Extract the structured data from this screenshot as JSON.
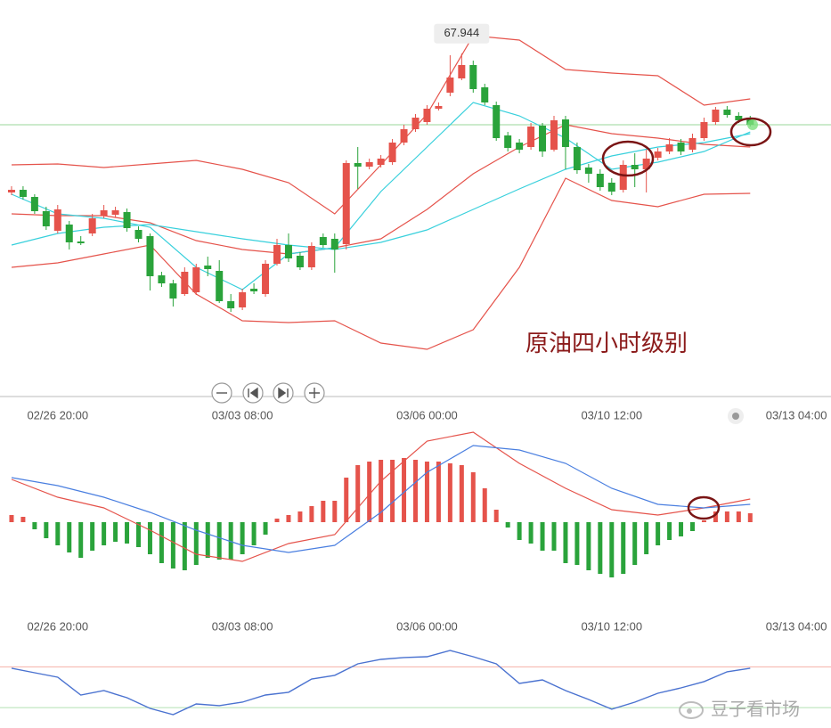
{
  "chart_data": [
    {
      "type": "candlestick",
      "annotation": "原油四小时级别",
      "marker": {
        "value": 67.944,
        "x": 39
      },
      "xlim": [
        -1,
        71
      ],
      "ylim": [
        59.9,
        68.8
      ],
      "xticks": [
        {
          "value": 4,
          "label": "02/26 20:00"
        },
        {
          "value": 20,
          "label": "03/03 08:00"
        },
        {
          "value": 36,
          "label": "03/06 00:00"
        },
        {
          "value": 52,
          "label": "03/10 12:00"
        },
        {
          "value": 68,
          "label": "03/13 04:00"
        }
      ],
      "up_color": "#e5534b",
      "down_color": "#2aa33b",
      "open": [
        64.48,
        64.54,
        64.38,
        64.06,
        63.62,
        63.76,
        63.38,
        63.56,
        63.96,
        63.98,
        64.04,
        63.64,
        63.5,
        62.62,
        62.44,
        62.2,
        62.24,
        62.84,
        62.72,
        62.04,
        61.9,
        62.32,
        62.2,
        62.88,
        63.3,
        63.06,
        62.8,
        63.48,
        63.44,
        63.32,
        65.14,
        65.06,
        65.1,
        65.16,
        65.6,
        65.9,
        66.06,
        66.36,
        66.72,
        67.04,
        67.34,
        66.84,
        66.44,
        65.76,
        65.6,
        65.5,
        65.98,
        65.44,
        66.12,
        65.5,
        65.04,
        64.9,
        64.7,
        64.54,
        65.1,
        65.0,
        65.26,
        65.4,
        65.6,
        65.44,
        65.7,
        66.06,
        66.34,
        66.2,
        66.12
      ],
      "close": [
        64.54,
        64.38,
        64.06,
        63.72,
        64.1,
        63.36,
        63.34,
        63.9,
        64.08,
        64.08,
        63.68,
        63.44,
        62.6,
        62.44,
        62.1,
        62.7,
        62.8,
        62.76,
        62.04,
        61.88,
        62.24,
        62.26,
        62.88,
        63.3,
        63.0,
        62.8,
        63.28,
        63.3,
        63.2,
        65.14,
        65.06,
        65.16,
        65.24,
        65.6,
        65.9,
        66.16,
        66.36,
        66.42,
        67.06,
        67.34,
        66.8,
        66.5,
        65.7,
        65.48,
        65.44,
        65.96,
        65.4,
        66.1,
        65.5,
        64.98,
        64.9,
        64.6,
        64.5,
        65.1,
        65.0,
        65.24,
        65.4,
        65.56,
        65.4,
        65.7,
        66.06,
        66.34,
        66.22,
        66.1,
        66.0
      ],
      "high": [
        64.62,
        64.62,
        64.44,
        64.16,
        64.2,
        63.84,
        63.5,
        64.0,
        64.2,
        64.16,
        64.12,
        63.72,
        63.56,
        62.7,
        62.52,
        62.8,
        62.88,
        63.04,
        62.96,
        62.2,
        62.32,
        62.44,
        62.96,
        63.44,
        63.56,
        63.14,
        63.36,
        63.56,
        63.56,
        65.2,
        65.5,
        65.24,
        65.32,
        65.68,
        66.0,
        66.24,
        66.44,
        66.5,
        67.56,
        67.6,
        67.44,
        66.92,
        66.52,
        65.84,
        65.68,
        66.04,
        66.04,
        66.2,
        66.2,
        65.6,
        65.12,
        65.0,
        64.8,
        65.2,
        65.36,
        65.44,
        65.48,
        65.7,
        65.68,
        65.8,
        66.16,
        66.4,
        66.42,
        66.28,
        66.2
      ],
      "low": [
        64.42,
        64.32,
        64.0,
        63.64,
        63.56,
        63.2,
        63.3,
        63.5,
        63.9,
        63.92,
        63.6,
        63.36,
        62.28,
        62.36,
        61.92,
        62.16,
        62.18,
        62.6,
        62.0,
        61.8,
        61.84,
        62.2,
        62.14,
        62.84,
        62.92,
        62.74,
        62.74,
        63.24,
        62.68,
        63.2,
        64.56,
        65.0,
        65.04,
        65.1,
        65.54,
        65.84,
        66.0,
        66.32,
        66.64,
        67.0,
        66.72,
        66.44,
        65.64,
        65.4,
        65.36,
        65.44,
        65.28,
        65.4,
        65.0,
        64.9,
        64.7,
        64.52,
        64.42,
        64.48,
        64.6,
        64.48,
        65.2,
        65.34,
        65.32,
        65.38,
        65.64,
        66.0,
        66.16,
        66.04,
        65.96
      ],
      "price_line": {
        "value": 66.0,
        "color": "#9ad79a"
      },
      "overlays": [
        {
          "color": "#e5534b",
          "x": [
            0,
            4,
            8,
            12,
            16,
            20,
            24,
            28,
            32,
            36,
            40,
            44,
            48,
            52,
            56,
            60,
            64
          ],
          "values": [
            65.1,
            65.12,
            65.04,
            65.12,
            65.2,
            65.0,
            64.7,
            64.0,
            65.1,
            66.24,
            68.0,
            67.9,
            67.24,
            67.16,
            67.1,
            66.44,
            66.58
          ]
        },
        {
          "color": "#e5534b",
          "x": [
            0,
            4,
            8,
            12,
            16,
            20,
            24,
            28,
            32,
            36,
            40,
            44,
            48,
            52,
            56,
            60,
            64
          ],
          "values": [
            64.0,
            63.96,
            63.96,
            63.8,
            63.4,
            63.2,
            63.1,
            63.24,
            63.44,
            64.1,
            64.9,
            65.5,
            66.0,
            65.8,
            65.7,
            65.56,
            65.5
          ]
        },
        {
          "color": "#e5534b",
          "x": [
            0,
            4,
            8,
            12,
            16,
            20,
            24,
            28,
            32,
            36,
            40,
            44,
            48,
            52,
            56,
            60,
            64
          ],
          "values": [
            62.8,
            62.9,
            63.1,
            63.3,
            62.2,
            61.6,
            61.56,
            61.6,
            61.1,
            60.96,
            61.4,
            62.8,
            64.8,
            64.3,
            64.16,
            64.44,
            64.46
          ]
        },
        {
          "color": "#38d0dc",
          "x": [
            0,
            4,
            8,
            12,
            16,
            20,
            24,
            28,
            32,
            36,
            40,
            44,
            48,
            52,
            56,
            60,
            64
          ],
          "values": [
            64.44,
            64.0,
            63.9,
            63.7,
            62.8,
            62.3,
            63.1,
            63.24,
            64.5,
            65.5,
            66.5,
            66.2,
            65.7,
            65.0,
            65.16,
            65.4,
            65.84
          ]
        },
        {
          "color": "#38d0dc",
          "x": [
            0,
            4,
            8,
            12,
            16,
            20,
            24,
            28,
            32,
            36,
            40,
            44,
            48,
            52,
            56,
            60,
            64
          ],
          "values": [
            63.3,
            63.56,
            63.7,
            63.76,
            63.6,
            63.44,
            63.3,
            63.2,
            63.36,
            63.64,
            64.1,
            64.56,
            65.0,
            65.3,
            65.5,
            65.6,
            65.8
          ]
        }
      ]
    },
    {
      "type": "macd",
      "xlim": [
        -1,
        71
      ],
      "ylim": [
        -0.47,
        0.53
      ],
      "xticks": [
        {
          "value": 4,
          "label": "02/26 20:00"
        },
        {
          "value": 20,
          "label": "03/03 08:00"
        },
        {
          "value": 36,
          "label": "03/06 00:00"
        },
        {
          "value": 52,
          "label": "03/10 12:00"
        },
        {
          "value": 68,
          "label": "03/13 04:00"
        }
      ],
      "up_color": "#e5534b",
      "down_color": "#2aa33b",
      "values": [
        0.04,
        0.03,
        -0.04,
        -0.09,
        -0.13,
        -0.17,
        -0.2,
        -0.16,
        -0.13,
        -0.11,
        -0.12,
        -0.14,
        -0.18,
        -0.23,
        -0.26,
        -0.27,
        -0.24,
        -0.2,
        -0.21,
        -0.21,
        -0.18,
        -0.13,
        -0.07,
        0.02,
        0.04,
        0.06,
        0.09,
        0.12,
        0.12,
        0.25,
        0.32,
        0.34,
        0.35,
        0.35,
        0.36,
        0.35,
        0.34,
        0.34,
        0.33,
        0.32,
        0.28,
        0.19,
        0.07,
        -0.03,
        -0.1,
        -0.12,
        -0.16,
        -0.16,
        -0.23,
        -0.24,
        -0.27,
        -0.29,
        -0.31,
        -0.29,
        -0.24,
        -0.18,
        -0.13,
        -0.1,
        -0.08,
        -0.05,
        0.01,
        0.06,
        0.06,
        0.06,
        0.05
      ],
      "lines": [
        {
          "color": "#e5534b",
          "x": [
            0,
            4,
            8,
            12,
            16,
            20,
            24,
            28,
            32,
            36,
            40,
            44,
            48,
            52,
            56,
            60,
            64
          ],
          "values": [
            0.24,
            0.14,
            0.08,
            -0.045,
            -0.18,
            -0.22,
            -0.12,
            -0.07,
            0.23,
            0.455,
            0.505,
            0.33,
            0.19,
            0.07,
            0.04,
            0.08,
            0.13
          ]
        },
        {
          "color": "#4a7fe0",
          "x": [
            0,
            4,
            8,
            12,
            16,
            20,
            24,
            28,
            32,
            36,
            40,
            44,
            48,
            52,
            56,
            60,
            64
          ],
          "values": [
            0.25,
            0.205,
            0.14,
            0.055,
            -0.045,
            -0.13,
            -0.17,
            -0.13,
            0.055,
            0.28,
            0.43,
            0.405,
            0.33,
            0.19,
            0.1,
            0.08,
            0.1
          ]
        }
      ]
    },
    {
      "type": "line",
      "xlim": [
        -1,
        71
      ],
      "ylim": [
        10,
        100
      ],
      "color": "#4a72d0",
      "reference_lines": [
        {
          "value": 70,
          "color": "#f5b0a6"
        },
        {
          "value": 30,
          "color": "#b3e0b3"
        }
      ],
      "x": [
        0,
        2,
        4,
        6,
        8,
        10,
        12,
        14,
        16,
        18,
        20,
        22,
        24,
        26,
        28,
        30,
        32,
        34,
        36,
        38,
        40,
        42,
        44,
        46,
        48,
        50,
        52,
        54,
        56,
        58,
        60,
        62,
        64
      ],
      "values": [
        68.6,
        64.2,
        59.8,
        42.3,
        46.7,
        39.7,
        29.2,
        23.1,
        33.6,
        31.9,
        35.3,
        42.3,
        45.0,
        58.1,
        61.6,
        72.9,
        77.3,
        79.1,
        79.9,
        86.0,
        79.9,
        72.9,
        53.7,
        57.2,
        46.7,
        38.0,
        28.4,
        35.3,
        44.1,
        49.3,
        55.5,
        65.1,
        68.6
      ]
    }
  ],
  "watermark": "豆子看市场"
}
